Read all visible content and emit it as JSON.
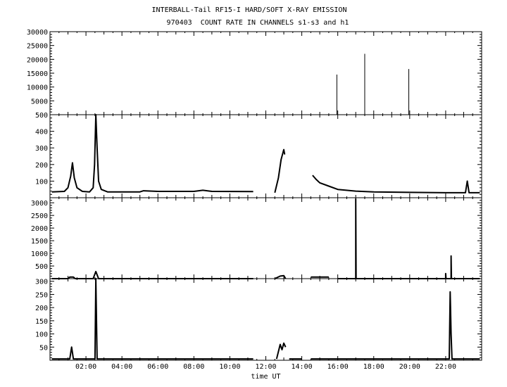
{
  "title": "INTERBALL-Tail RF15-I HARD/SOFT X-RAY EMISSION",
  "subtitle": "970403  COUNT RATE IN CHANNELS s1-s3 and h1",
  "xlabel": "time UT",
  "colors": {
    "background": "#ffffff",
    "ink": "#000000"
  },
  "chart_data": [
    {
      "type": "line",
      "panel": 1,
      "xlim": [
        0,
        24
      ],
      "ylim": [
        0,
        30000
      ],
      "yticks": [
        5000,
        10000,
        15000,
        20000,
        25000,
        30000
      ],
      "xticks": [
        "02:00",
        "04:00",
        "06:00",
        "08:00",
        "10:00",
        "12:00",
        "14:00",
        "16:00",
        "18:00",
        "20:00",
        "22:00"
      ],
      "spikes": [
        {
          "x": 15.95,
          "y": 14500
        },
        {
          "x": 17.5,
          "y": 22000
        },
        {
          "x": 19.95,
          "y": 16500
        }
      ]
    },
    {
      "type": "line",
      "panel": 2,
      "xlim": [
        0,
        24
      ],
      "ylim": [
        0,
        500
      ],
      "yticks": [
        100,
        200,
        300,
        400,
        500
      ],
      "xticks": [
        "02:00",
        "04:00",
        "06:00",
        "08:00",
        "10:00",
        "12:00",
        "14:00",
        "16:00",
        "18:00",
        "20:00",
        "22:00"
      ],
      "profile": [
        [
          0.1,
          35
        ],
        [
          0.8,
          38
        ],
        [
          1.0,
          60
        ],
        [
          1.15,
          130
        ],
        [
          1.25,
          210
        ],
        [
          1.35,
          120
        ],
        [
          1.5,
          60
        ],
        [
          1.8,
          38
        ],
        [
          2.2,
          35
        ],
        [
          2.4,
          60
        ],
        [
          2.48,
          200
        ],
        [
          2.55,
          500
        ],
        [
          2.62,
          300
        ],
        [
          2.7,
          100
        ],
        [
          2.85,
          50
        ],
        [
          3.2,
          35
        ],
        [
          5.0,
          35
        ],
        [
          5.2,
          42
        ],
        [
          6.0,
          38
        ],
        [
          8.0,
          38
        ],
        [
          8.5,
          45
        ],
        [
          9.0,
          38
        ],
        [
          11.3,
          37
        ],
        [
          null,
          null
        ],
        [
          12.5,
          30
        ],
        [
          12.7,
          120
        ],
        [
          12.85,
          230
        ],
        [
          13.0,
          290
        ],
        [
          13.05,
          260
        ],
        [
          null,
          null
        ],
        [
          14.6,
          135
        ],
        [
          14.8,
          110
        ],
        [
          15.0,
          90
        ],
        [
          15.5,
          70
        ],
        [
          16.0,
          50
        ],
        [
          17.0,
          40
        ],
        [
          18.0,
          35
        ],
        [
          20.0,
          32
        ],
        [
          22.0,
          30
        ],
        [
          23.1,
          30
        ],
        [
          23.2,
          100
        ],
        [
          23.3,
          30
        ],
        [
          23.9,
          30
        ]
      ]
    },
    {
      "type": "line",
      "panel": 3,
      "xlim": [
        0,
        24
      ],
      "ylim": [
        0,
        3200
      ],
      "yticks": [
        500,
        1000,
        1500,
        2000,
        2500,
        3000
      ],
      "xticks": [
        "02:00",
        "04:00",
        "06:00",
        "08:00",
        "10:00",
        "12:00",
        "14:00",
        "16:00",
        "18:00",
        "20:00",
        "22:00"
      ],
      "profile": [
        [
          0.1,
          0
        ],
        [
          1.0,
          0
        ],
        [
          1.1,
          60
        ],
        [
          1.3,
          60
        ],
        [
          1.4,
          0
        ],
        [
          2.4,
          0
        ],
        [
          2.55,
          280
        ],
        [
          2.7,
          0
        ],
        [
          11.3,
          0
        ],
        [
          null,
          null
        ],
        [
          12.5,
          0
        ],
        [
          12.8,
          100
        ],
        [
          13.0,
          120
        ],
        [
          13.1,
          0
        ],
        [
          null,
          null
        ],
        [
          14.5,
          60
        ],
        [
          15.5,
          60
        ],
        [
          null,
          null
        ],
        [
          16.0,
          0
        ],
        [
          17.0,
          0
        ],
        [
          17.0,
          3150
        ],
        [
          17.02,
          0
        ],
        [
          22.0,
          0
        ],
        [
          22.0,
          200
        ],
        [
          22.02,
          0
        ],
        [
          22.3,
          0
        ],
        [
          22.3,
          900
        ],
        [
          22.32,
          0
        ],
        [
          23.9,
          0
        ]
      ],
      "line_color": "#000000"
    },
    {
      "type": "line",
      "panel": 4,
      "xlim": [
        0,
        24
      ],
      "ylim": [
        0,
        310
      ],
      "yticks": [
        50,
        100,
        150,
        200,
        250,
        300
      ],
      "xticks": [
        "02:00",
        "04:00",
        "06:00",
        "08:00",
        "10:00",
        "12:00",
        "14:00",
        "16:00",
        "18:00",
        "20:00",
        "22:00"
      ],
      "profile": [
        [
          0.1,
          5
        ],
        [
          1.1,
          5
        ],
        [
          1.2,
          50
        ],
        [
          1.3,
          5
        ],
        [
          2.5,
          5
        ],
        [
          2.55,
          310
        ],
        [
          2.62,
          5
        ],
        [
          11.3,
          5
        ],
        [
          null,
          null
        ],
        [
          12.6,
          5
        ],
        [
          12.8,
          60
        ],
        [
          12.9,
          40
        ],
        [
          13.0,
          65
        ],
        [
          13.1,
          50
        ],
        [
          null,
          null
        ],
        [
          13.3,
          5
        ],
        [
          14.0,
          5
        ],
        [
          null,
          null
        ],
        [
          14.5,
          5
        ],
        [
          22.2,
          5
        ],
        [
          22.25,
          260
        ],
        [
          22.3,
          100
        ],
        [
          22.35,
          5
        ],
        [
          23.9,
          5
        ]
      ]
    }
  ]
}
